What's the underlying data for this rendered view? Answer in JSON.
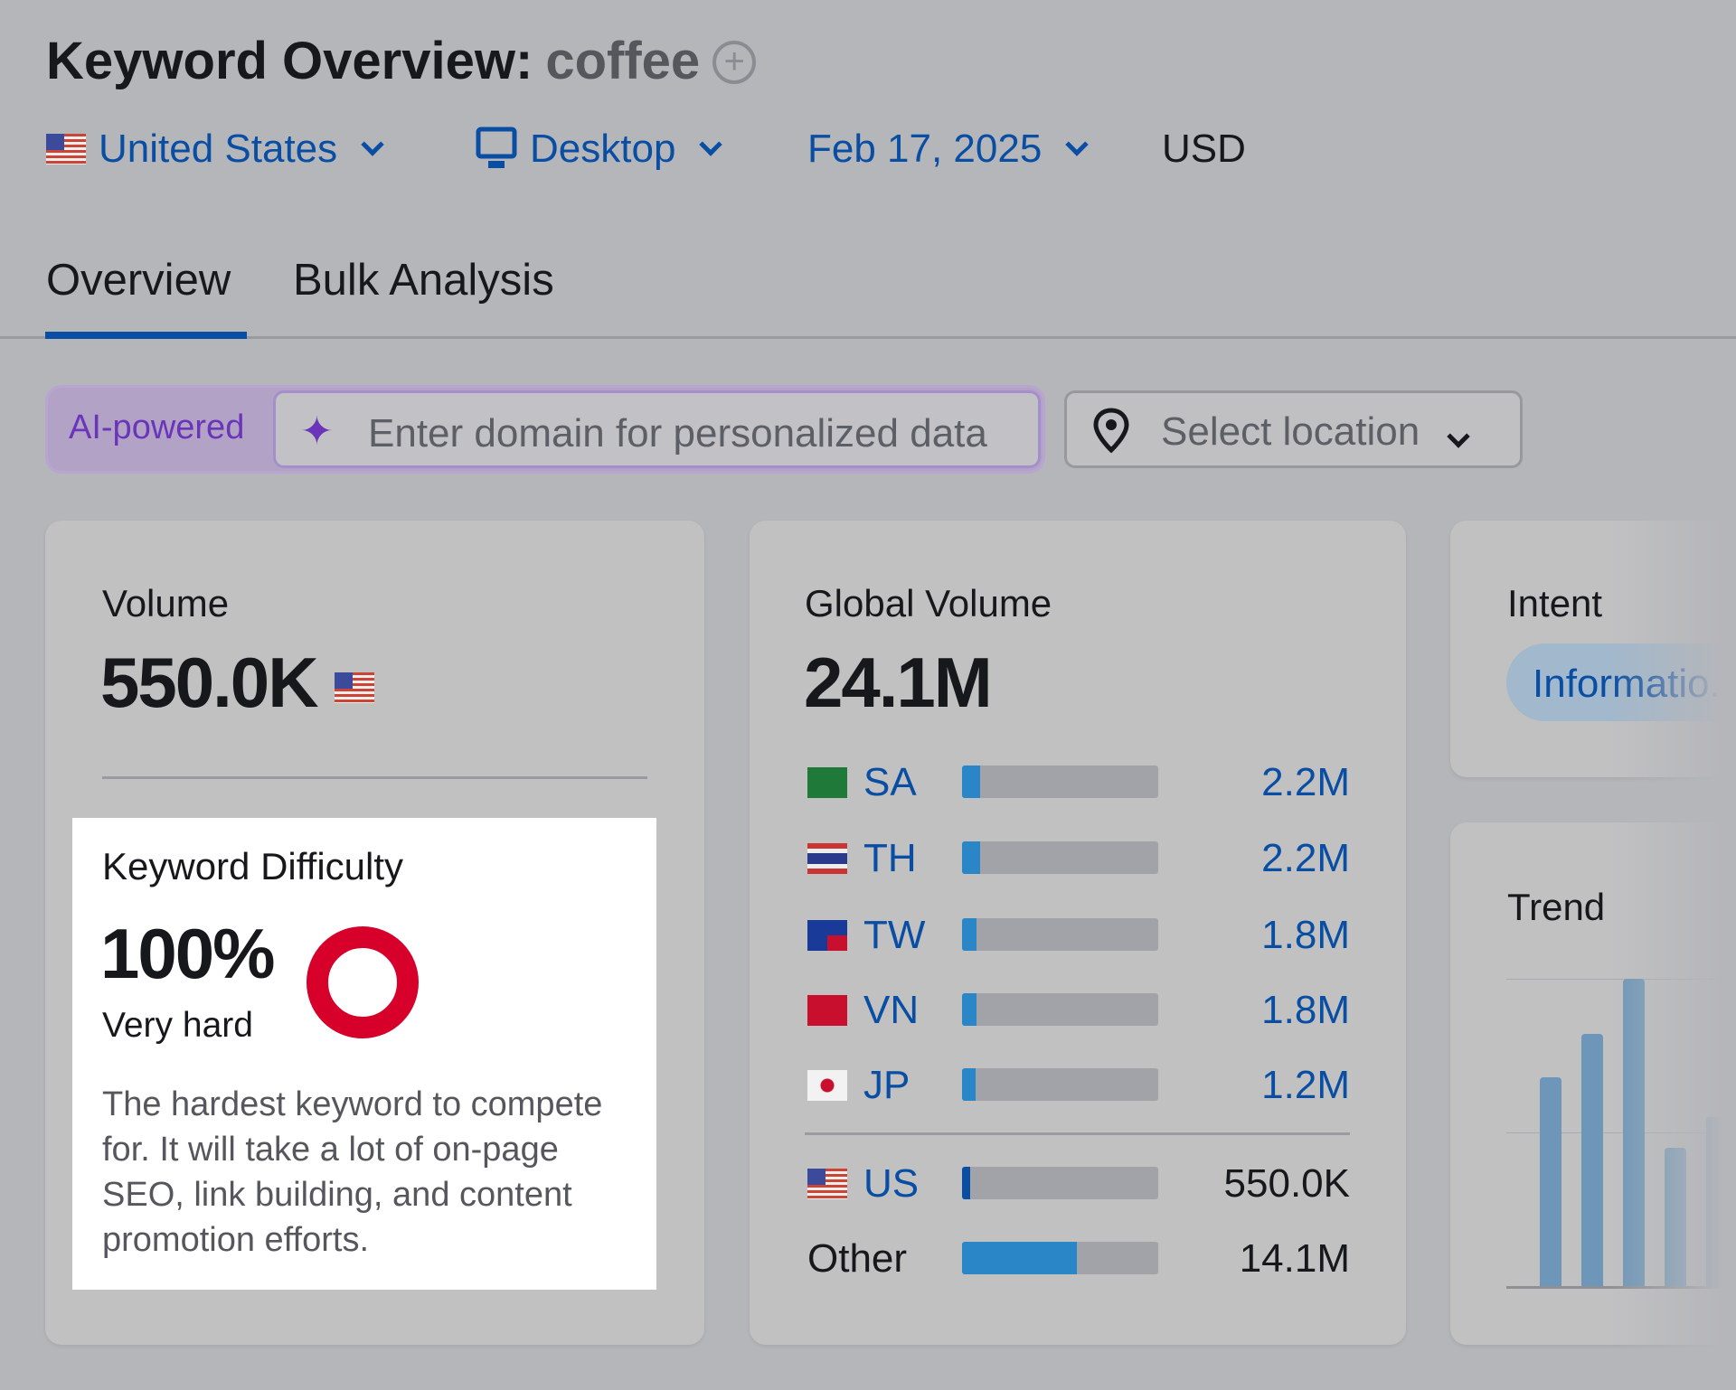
{
  "header": {
    "title": "Keyword Overview:",
    "keyword": "coffee",
    "add_icon": "plus-circle-icon"
  },
  "selectors": {
    "country": "United States",
    "device": "Desktop",
    "date": "Feb 17, 2025",
    "currency": "USD"
  },
  "tabs": [
    {
      "label": "Overview",
      "active": true
    },
    {
      "label": "Bulk Analysis",
      "active": false
    }
  ],
  "ai": {
    "badge": "AI-powered",
    "placeholder": "Enter domain for personalized data",
    "location_placeholder": "Select location"
  },
  "volume": {
    "label": "Volume",
    "value": "550.0K"
  },
  "difficulty": {
    "label": "Keyword Difficulty",
    "value": "100%",
    "level": "Very hard",
    "percent": 100,
    "color": "#d6002a",
    "description": "The hardest keyword to compete for. It will take a lot of on-page SEO, link building, and content promotion efforts."
  },
  "global_volume": {
    "label": "Global Volume",
    "value": "24.1M",
    "rows": [
      {
        "code": "SA",
        "value": "2.2M",
        "share": 0.091
      },
      {
        "code": "TH",
        "value": "2.2M",
        "share": 0.091
      },
      {
        "code": "TW",
        "value": "1.8M",
        "share": 0.075
      },
      {
        "code": "VN",
        "value": "1.8M",
        "share": 0.075
      },
      {
        "code": "JP",
        "value": "1.2M",
        "share": 0.05
      }
    ],
    "us": {
      "code": "US",
      "value": "550.0K",
      "share": 0.023
    },
    "other": {
      "label": "Other",
      "value": "14.1M",
      "share": 0.585
    }
  },
  "intent": {
    "label": "Intent",
    "value": "Informatio..."
  },
  "trend": {
    "label": "Trend",
    "relative_values": [
      0.68,
      0.82,
      1.0,
      0.45,
      0.55
    ]
  }
}
